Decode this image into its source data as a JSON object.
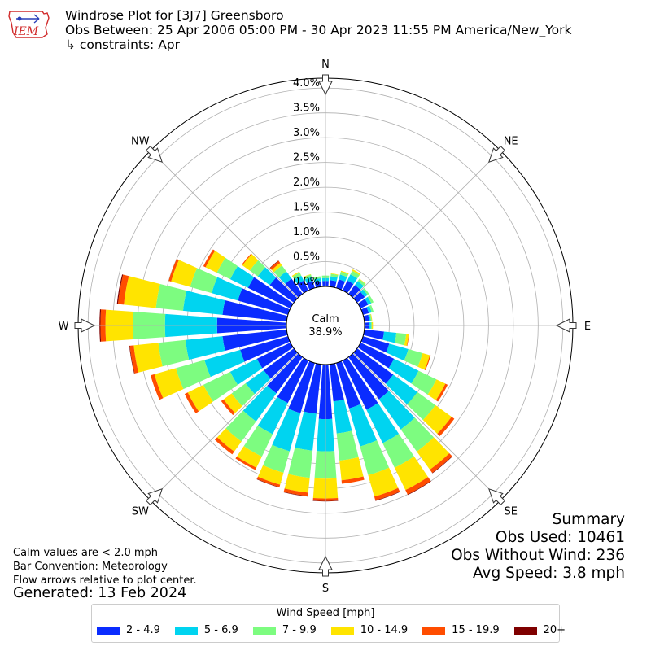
{
  "header": {
    "logo_text": "IEM",
    "title": "Windrose Plot for [3J7] Greensboro",
    "obs_between": "Obs Between: 25 Apr 2006 05:00 PM - 30 Apr 2023 11:55 PM America/New_York",
    "constraints": "↳ constraints: Apr"
  },
  "chart_data": {
    "type": "windrose",
    "directions": [
      "N",
      "NE",
      "E",
      "SE",
      "S",
      "SW",
      "W",
      "NW"
    ],
    "radial_ticks": [
      "0.0%",
      "0.5%",
      "1.0%",
      "1.5%",
      "2.0%",
      "2.5%",
      "3.0%",
      "3.5%",
      "4.0%"
    ],
    "radial_max": 4.2,
    "calm_label": "Calm",
    "calm_value": "38.9%",
    "bins": [
      {
        "label": "2 - 4.9",
        "color": "#0a2cff"
      },
      {
        "label": "5 - 6.9",
        "color": "#00d4f0"
      },
      {
        "label": "7 - 9.9",
        "color": "#7dfc80"
      },
      {
        "label": "10 - 14.9",
        "color": "#ffe400"
      },
      {
        "label": "15 - 19.9",
        "color": "#ff4d00"
      },
      {
        "label": "20+",
        "color": "#7f0000"
      }
    ],
    "sector_directions_deg": [
      0,
      10,
      20,
      30,
      40,
      50,
      60,
      70,
      80,
      90,
      100,
      110,
      120,
      130,
      140,
      150,
      160,
      170,
      180,
      190,
      200,
      210,
      220,
      230,
      240,
      250,
      260,
      270,
      280,
      290,
      300,
      310,
      320,
      330,
      340,
      350
    ],
    "sectors": [
      [
        0.11,
        0.06,
        0.05,
        0.0,
        0.0,
        0.0
      ],
      [
        0.13,
        0.08,
        0.05,
        0.01,
        0.0,
        0.0
      ],
      [
        0.18,
        0.1,
        0.06,
        0.02,
        0.0,
        0.0
      ],
      [
        0.22,
        0.14,
        0.08,
        0.03,
        0.0,
        0.0
      ],
      [
        0.22,
        0.1,
        0.05,
        0.01,
        0.0,
        0.0
      ],
      [
        0.19,
        0.07,
        0.04,
        0.0,
        0.0,
        0.0
      ],
      [
        0.17,
        0.07,
        0.05,
        0.0,
        0.0,
        0.0
      ],
      [
        0.12,
        0.06,
        0.04,
        0.0,
        0.0,
        0.0
      ],
      [
        0.1,
        0.03,
        0.02,
        0.01,
        0.0,
        0.0
      ],
      [
        0.1,
        0.03,
        0.02,
        0.02,
        0.0,
        0.0
      ],
      [
        0.4,
        0.25,
        0.2,
        0.05,
        0.01,
        0.0
      ],
      [
        0.55,
        0.4,
        0.3,
        0.15,
        0.02,
        0.0
      ],
      [
        0.75,
        0.55,
        0.4,
        0.2,
        0.05,
        0.0
      ],
      [
        0.9,
        0.6,
        0.45,
        0.4,
        0.07,
        0.0
      ],
      [
        1.05,
        0.75,
        0.55,
        0.45,
        0.08,
        0.01
      ],
      [
        1.1,
        0.75,
        0.55,
        0.5,
        0.1,
        0.01
      ],
      [
        0.95,
        0.8,
        0.6,
        0.45,
        0.08,
        0.01
      ],
      [
        0.75,
        0.65,
        0.55,
        0.4,
        0.07,
        0.0
      ],
      [
        1.1,
        0.65,
        0.55,
        0.4,
        0.05,
        0.01
      ],
      [
        1.0,
        0.75,
        0.55,
        0.3,
        0.07,
        0.01
      ],
      [
        1.05,
        0.8,
        0.45,
        0.25,
        0.05,
        0.01
      ],
      [
        0.95,
        0.7,
        0.5,
        0.25,
        0.05,
        0.0
      ],
      [
        0.9,
        0.7,
        0.5,
        0.25,
        0.07,
        0.0
      ],
      [
        0.75,
        0.45,
        0.35,
        0.2,
        0.06,
        0.0
      ],
      [
        0.75,
        0.6,
        0.6,
        0.35,
        0.07,
        0.0
      ],
      [
        1.0,
        0.75,
        0.6,
        0.45,
        0.08,
        0.0
      ],
      [
        1.3,
        0.75,
        0.55,
        0.5,
        0.08,
        0.01
      ],
      [
        1.4,
        1.05,
        0.65,
        0.55,
        0.1,
        0.02
      ],
      [
        1.3,
        0.8,
        0.55,
        0.65,
        0.12,
        0.02
      ],
      [
        1.05,
        0.55,
        0.45,
        0.4,
        0.05,
        0.0
      ],
      [
        0.95,
        0.4,
        0.3,
        0.25,
        0.05,
        0.0
      ],
      [
        0.6,
        0.3,
        0.2,
        0.18,
        0.02,
        0.0
      ],
      [
        0.38,
        0.18,
        0.15,
        0.06,
        0.05,
        0.01
      ],
      [
        0.22,
        0.11,
        0.07,
        0.02,
        0.0,
        0.0
      ],
      [
        0.15,
        0.08,
        0.05,
        0.01,
        0.0,
        0.0
      ],
      [
        0.11,
        0.06,
        0.04,
        0.0,
        0.0,
        0.0
      ]
    ]
  },
  "notes": {
    "calm_note": "Calm values are < 2.0 mph",
    "bar_convention": "Bar Convention: Meteorology",
    "flow_arrows": "Flow arrows relative to plot center."
  },
  "generated": "Generated: 13 Feb 2024",
  "summary": {
    "heading": "Summary",
    "obs_used": "Obs Used: 10461",
    "obs_without_wind": "Obs Without Wind: 236",
    "avg_speed": "Avg Speed: 3.8 mph"
  },
  "legend": {
    "title": "Wind Speed [mph]"
  }
}
